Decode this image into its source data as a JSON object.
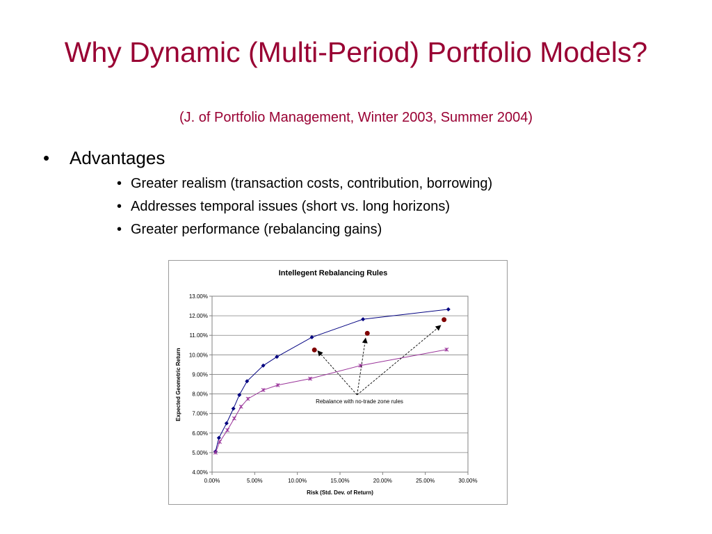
{
  "slide": {
    "title": "Why Dynamic (Multi-Period) Portfolio Models?",
    "subtitle": "(J. of Portfolio Management, Winter 2003, Summer 2004)",
    "bullet_glyph": "•",
    "bullets": [
      {
        "text": "Advantages",
        "level": 1
      },
      {
        "text": "Greater realism (transaction costs, contribution, borrowing)",
        "level": 2
      },
      {
        "text": "Addresses temporal issues (short vs. long horizons)",
        "level": 2
      },
      {
        "text": "Greater performance (rebalancing gains)",
        "level": 2
      }
    ]
  },
  "chart_data": {
    "type": "scatter",
    "title": "Intellegent Rebalancing Rules",
    "xlabel": "Risk (Std. Dev. of Return)",
    "ylabel": "Expected Geometric Return",
    "xlim": [
      0,
      0.3
    ],
    "ylim": [
      0.04,
      0.13
    ],
    "x_ticks": [
      "0.00%",
      "5.00%",
      "10.00%",
      "15.00%",
      "20.00%",
      "25.00%",
      "30.00%"
    ],
    "y_ticks": [
      "4.00%",
      "5.00%",
      "6.00%",
      "7.00%",
      "8.00%",
      "9.00%",
      "10.00%",
      "11.00%",
      "12.00%",
      "13.00%"
    ],
    "grid": "horizontal",
    "legend": "none",
    "series": [
      {
        "marker": "diamond",
        "color": "#000080",
        "line": true,
        "x": [
          0.004,
          0.008,
          0.017,
          0.025,
          0.032,
          0.041,
          0.06,
          0.076,
          0.117,
          0.177,
          0.277
        ],
        "y": [
          0.0505,
          0.0575,
          0.065,
          0.0725,
          0.0795,
          0.0865,
          0.0945,
          0.099,
          0.109,
          0.1182,
          0.1233
        ]
      },
      {
        "marker": "x",
        "color": "#993399",
        "line": true,
        "x": [
          0.004,
          0.009,
          0.018,
          0.026,
          0.034,
          0.042,
          0.06,
          0.077,
          0.115,
          0.174,
          0.275
        ],
        "y": [
          0.05,
          0.0555,
          0.0615,
          0.0675,
          0.0735,
          0.0775,
          0.082,
          0.0845,
          0.0878,
          0.0945,
          0.1027
        ]
      },
      {
        "marker": "circle",
        "color": "#800000",
        "line": false,
        "x": [
          0.12,
          0.182,
          0.272
        ],
        "y": [
          0.1025,
          0.111,
          0.118
        ]
      }
    ],
    "annotations": [
      {
        "text": "Rebalance with no-trade zone rules",
        "origin": {
          "x": 0.17,
          "y": 0.0795
        },
        "arrows_to": [
          {
            "x": 0.124,
            "y": 0.102
          },
          {
            "x": 0.18,
            "y": 0.1085
          },
          {
            "x": 0.268,
            "y": 0.115
          }
        ]
      }
    ]
  }
}
